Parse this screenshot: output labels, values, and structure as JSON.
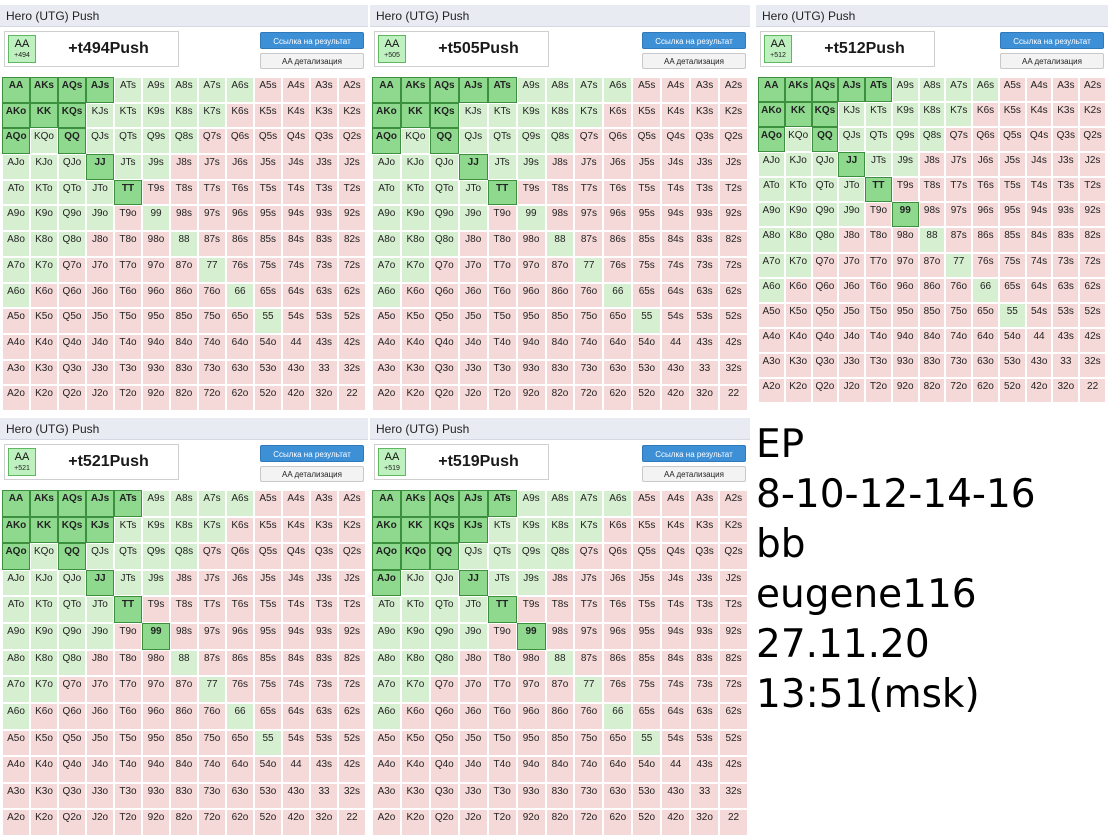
{
  "ranks": [
    "A",
    "K",
    "Q",
    "J",
    "T",
    "9",
    "8",
    "7",
    "6",
    "5",
    "4",
    "3",
    "2"
  ],
  "panels": [
    {
      "title": "Hero (UTG) Push",
      "hand": "AA",
      "hand_ev": "+494",
      "result": "+t494Push",
      "push_count": 11,
      "link_button": "Ссылка на результат",
      "detail_button": "AA детализация"
    },
    {
      "title": "Hero (UTG) Push",
      "hand": "AA",
      "hand_ev": "+505",
      "result": "+t505Push",
      "push_count": 12,
      "link_button": "Ссылка на результат",
      "detail_button": "AA детализация"
    },
    {
      "title": "Hero (UTG) Push",
      "hand": "AA",
      "hand_ev": "+512",
      "result": "+t512Push",
      "push_count": 13,
      "link_button": "Ссылка на результат",
      "detail_button": "AA детализация"
    },
    {
      "title": "Hero (UTG) Push",
      "hand": "AA",
      "hand_ev": "+521",
      "result": "+t521Push",
      "push_count": 14,
      "link_button": "Ссылка на результат",
      "detail_button": "AA детализация"
    },
    {
      "title": "Hero (UTG) Push",
      "hand": "AA",
      "hand_ev": "+519",
      "result": "+t519Push",
      "push_count": 16,
      "link_button": "Ссылка на результат",
      "detail_button": "AA детализация"
    }
  ],
  "notes": [
    "EP",
    "8-10-12-14-16",
    "bb",
    "eugene116",
    "27.11.20",
    "13:51(msk)"
  ],
  "colors": {
    "push": "#8fd98f",
    "positive": "#d6efd0",
    "negative": "#f5d8d8",
    "button": "#3d8fd6"
  }
}
